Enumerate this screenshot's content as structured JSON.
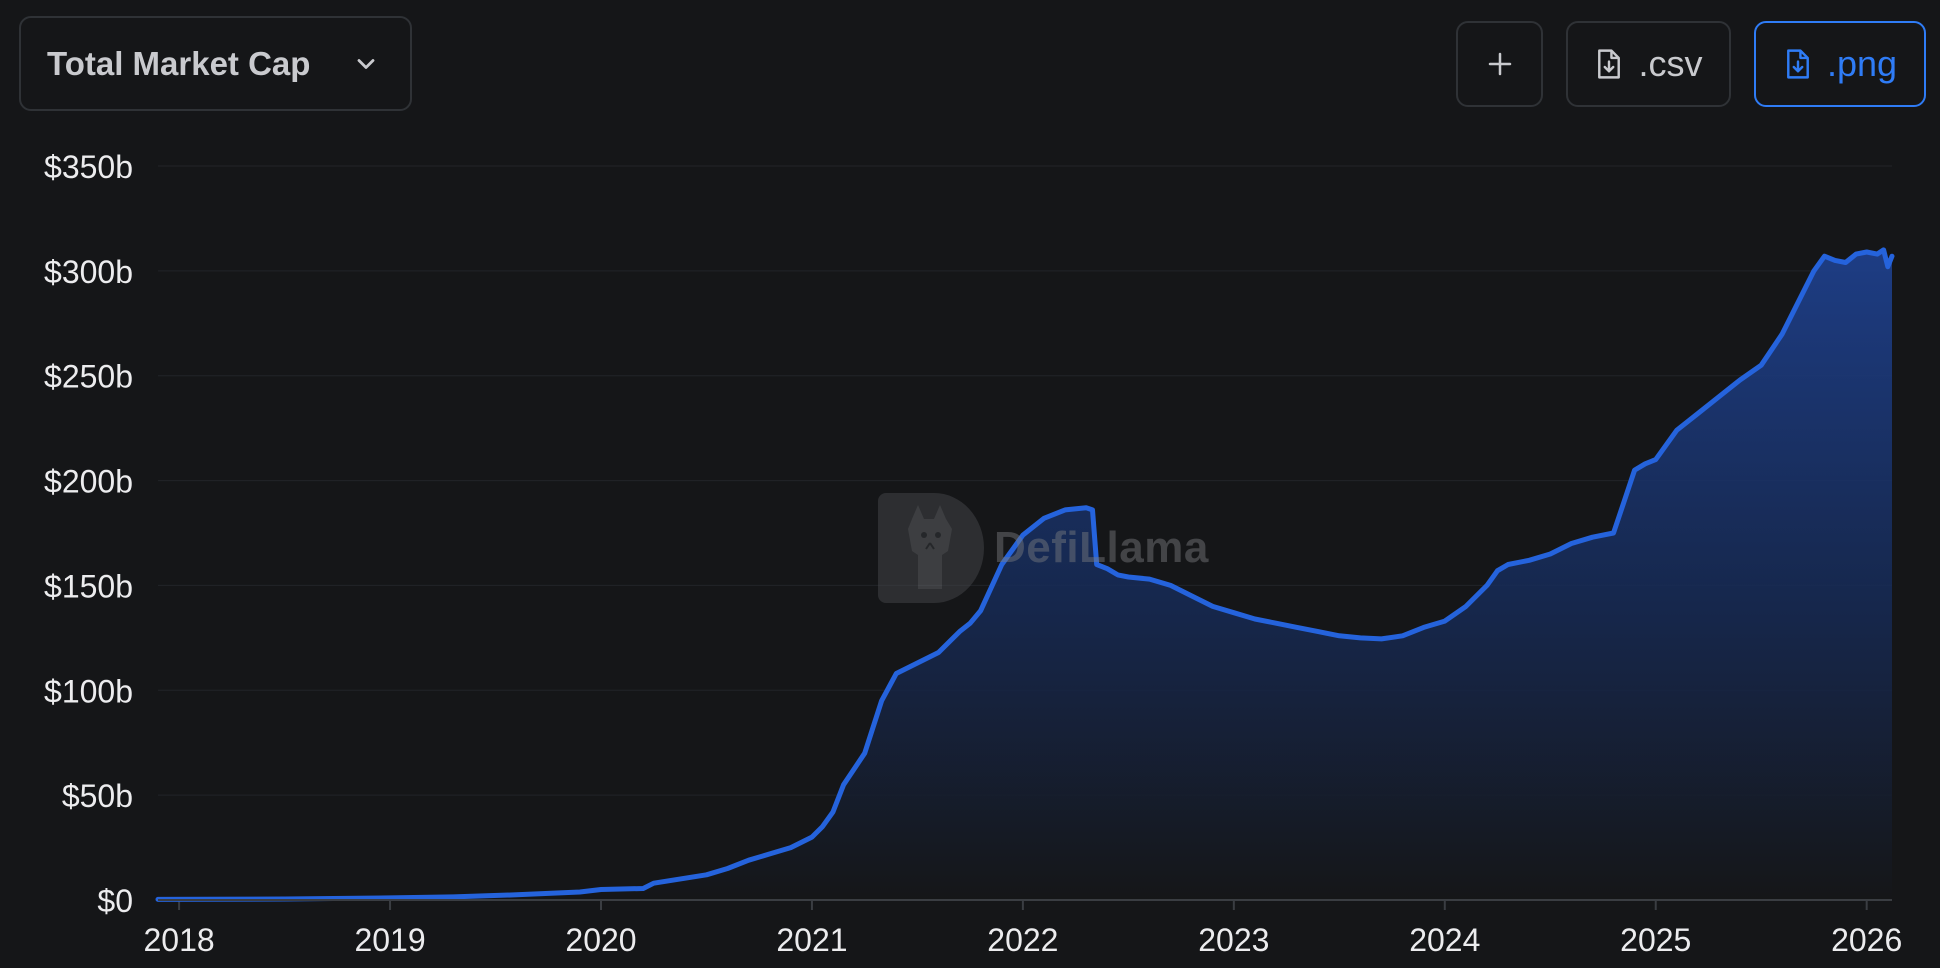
{
  "header": {
    "metric_label": "Total Market Cap",
    "buttons": {
      "add_label": "+",
      "csv_label": ".csv",
      "png_label": ".png"
    }
  },
  "watermark": {
    "text": "DefiLlama"
  },
  "colors": {
    "background": "#151618",
    "line": "#2563dc",
    "fill_top": "#1e3f8a",
    "accent": "#2f7cf6",
    "grid": "#222428",
    "tick_text": "#ececee"
  },
  "icons": {
    "dropdown": "chevron-down-icon",
    "add": "plus-icon",
    "csv": "file-download-icon",
    "png": "file-download-icon"
  },
  "chart_data": {
    "type": "area",
    "ylim": [
      0,
      350
    ],
    "yticks": [
      0,
      50,
      100,
      150,
      200,
      250,
      300,
      350
    ],
    "ytick_labels": [
      "$0",
      "$50b",
      "$100b",
      "$150b",
      "$200b",
      "$250b",
      "$300b",
      "$350b"
    ],
    "xticks": [
      2018,
      2019,
      2020,
      2021,
      2022,
      2023,
      2024,
      2025,
      2026
    ],
    "xtick_labels": [
      "2018",
      "2019",
      "2020",
      "2021",
      "2022",
      "2023",
      "2024",
      "2025",
      "2026"
    ],
    "xlim": [
      2017.9,
      2026.12
    ],
    "grid": true,
    "series": [
      {
        "x": [
          2017.9,
          2018.5,
          2019.0,
          2019.3,
          2019.6,
          2019.9,
          2020.0,
          2020.2,
          2020.25,
          2020.5,
          2020.6,
          2020.7,
          2020.8,
          2020.9,
          2021.0,
          2021.05,
          2021.1,
          2021.15,
          2021.25,
          2021.33,
          2021.4,
          2021.5,
          2021.6,
          2021.7,
          2021.75,
          2021.8,
          2021.9,
          2022.0,
          2022.1,
          2022.2,
          2022.3,
          2022.33,
          2022.35,
          2022.4,
          2022.45,
          2022.5,
          2022.6,
          2022.7,
          2022.8,
          2022.9,
          2023.0,
          2023.1,
          2023.2,
          2023.3,
          2023.4,
          2023.5,
          2023.6,
          2023.7,
          2023.8,
          2023.9,
          2024.0,
          2024.1,
          2024.2,
          2024.25,
          2024.3,
          2024.4,
          2024.5,
          2024.6,
          2024.7,
          2024.8,
          2024.85,
          2024.9,
          2024.95,
          2025.0,
          2025.1,
          2025.2,
          2025.3,
          2025.4,
          2025.5,
          2025.6,
          2025.7,
          2025.75,
          2025.8,
          2025.85,
          2025.9,
          2025.95,
          2026.0,
          2026.05,
          2026.08,
          2026.1,
          2026.12
        ],
        "y": [
          0.3,
          0.5,
          1,
          1.5,
          2.5,
          3.8,
          5,
          5.5,
          8,
          12,
          15,
          19,
          22,
          25,
          30,
          35,
          42,
          55,
          70,
          95,
          108,
          113,
          118,
          128,
          132,
          138,
          160,
          174,
          182,
          186,
          187,
          186,
          160,
          158,
          155,
          154,
          153,
          150,
          145,
          140,
          137,
          134,
          132,
          130,
          128,
          126,
          125,
          124.5,
          126,
          130,
          133,
          140,
          150,
          157,
          160,
          162,
          165,
          170,
          173,
          175,
          190,
          205,
          208,
          210,
          224,
          232,
          240,
          248,
          255,
          270,
          290,
          300,
          307,
          305,
          304,
          308,
          309,
          308,
          310,
          302,
          307
        ]
      }
    ]
  }
}
